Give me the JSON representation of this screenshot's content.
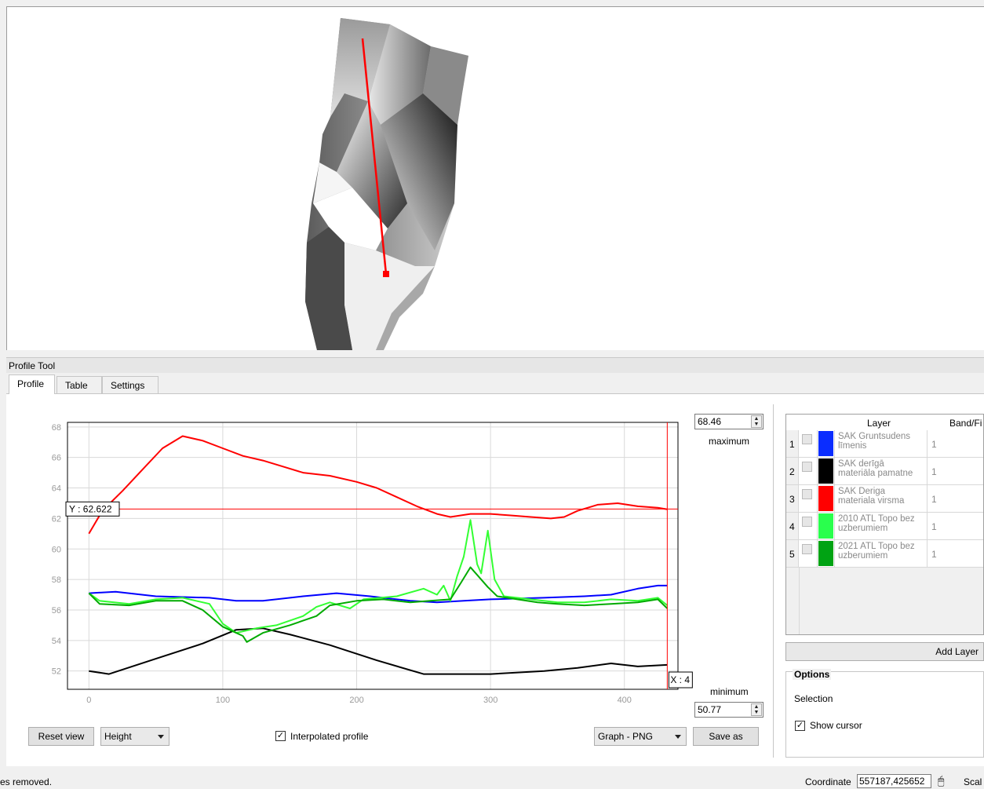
{
  "panel": {
    "title": "Profile Tool"
  },
  "tabs": [
    {
      "label": "Profile"
    },
    {
      "label": "Table"
    },
    {
      "label": "Settings"
    }
  ],
  "controls": {
    "maximum_value": "68.46",
    "maximum_label": "maximum",
    "minimum_value": "50.77",
    "minimum_label": "minimum",
    "reset_view": "Reset view",
    "mode_select": "Height",
    "interpolated_label": "Interpolated profile",
    "interpolated_checked": true,
    "export_select": "Graph - PNG",
    "save_as": "Save as"
  },
  "chart_data": {
    "type": "line",
    "xlim": [
      -16,
      440
    ],
    "ylim": [
      50.8,
      68.3
    ],
    "x_ticks": [
      0,
      100,
      200,
      300,
      400
    ],
    "y_ticks": [
      52,
      54,
      56,
      58,
      60,
      62,
      64,
      66,
      68
    ],
    "grid": true,
    "cursor": {
      "y_label": "Y : 62.622",
      "y_value": 62.622,
      "x_label": "X : 4",
      "x_value": 432
    },
    "series": [
      {
        "color": "#ff0000",
        "points": [
          [
            0,
            61
          ],
          [
            10,
            62.5
          ],
          [
            25,
            63.8
          ],
          [
            40,
            65.2
          ],
          [
            55,
            66.6
          ],
          [
            70,
            67.4
          ],
          [
            85,
            67.1
          ],
          [
            100,
            66.6
          ],
          [
            115,
            66.1
          ],
          [
            130,
            65.8
          ],
          [
            145,
            65.4
          ],
          [
            160,
            65.0
          ],
          [
            180,
            64.8
          ],
          [
            200,
            64.4
          ],
          [
            215,
            64.0
          ],
          [
            230,
            63.4
          ],
          [
            245,
            62.8
          ],
          [
            260,
            62.3
          ],
          [
            270,
            62.1
          ],
          [
            285,
            62.3
          ],
          [
            300,
            62.3
          ],
          [
            315,
            62.2
          ],
          [
            330,
            62.1
          ],
          [
            345,
            62.0
          ],
          [
            355,
            62.1
          ],
          [
            365,
            62.5
          ],
          [
            380,
            62.9
          ],
          [
            395,
            63.0
          ],
          [
            410,
            62.8
          ],
          [
            425,
            62.7
          ],
          [
            432,
            62.6
          ]
        ]
      },
      {
        "color": "#0000ff",
        "points": [
          [
            0,
            57.1
          ],
          [
            20,
            57.2
          ],
          [
            50,
            56.9
          ],
          [
            90,
            56.8
          ],
          [
            110,
            56.6
          ],
          [
            130,
            56.6
          ],
          [
            160,
            56.9
          ],
          [
            185,
            57.1
          ],
          [
            210,
            56.9
          ],
          [
            240,
            56.6
          ],
          [
            260,
            56.5
          ],
          [
            280,
            56.6
          ],
          [
            300,
            56.7
          ],
          [
            340,
            56.8
          ],
          [
            370,
            56.9
          ],
          [
            390,
            57.0
          ],
          [
            410,
            57.4
          ],
          [
            425,
            57.6
          ],
          [
            432,
            57.6
          ]
        ]
      },
      {
        "color": "#000000",
        "points": [
          [
            0,
            52.0
          ],
          [
            15,
            51.8
          ],
          [
            50,
            52.8
          ],
          [
            85,
            53.8
          ],
          [
            110,
            54.7
          ],
          [
            130,
            54.8
          ],
          [
            150,
            54.4
          ],
          [
            180,
            53.7
          ],
          [
            215,
            52.7
          ],
          [
            250,
            51.8
          ],
          [
            300,
            51.8
          ],
          [
            340,
            52.0
          ],
          [
            365,
            52.2
          ],
          [
            390,
            52.5
          ],
          [
            410,
            52.3
          ],
          [
            432,
            52.4
          ]
        ]
      },
      {
        "color": "#33ff33",
        "points": [
          [
            0,
            57.1
          ],
          [
            8,
            56.6
          ],
          [
            30,
            56.4
          ],
          [
            50,
            56.7
          ],
          [
            70,
            56.8
          ],
          [
            90,
            56.4
          ],
          [
            100,
            55.1
          ],
          [
            110,
            54.5
          ],
          [
            125,
            54.8
          ],
          [
            140,
            55.0
          ],
          [
            160,
            55.6
          ],
          [
            170,
            56.2
          ],
          [
            180,
            56.5
          ],
          [
            195,
            56.1
          ],
          [
            205,
            56.7
          ],
          [
            230,
            56.9
          ],
          [
            250,
            57.4
          ],
          [
            260,
            57.0
          ],
          [
            265,
            57.6
          ],
          [
            270,
            56.6
          ],
          [
            275,
            58.2
          ],
          [
            280,
            59.5
          ],
          [
            285,
            61.9
          ],
          [
            290,
            59.0
          ],
          [
            293,
            58.4
          ],
          [
            298,
            61.2
          ],
          [
            303,
            58.0
          ],
          [
            310,
            56.9
          ],
          [
            330,
            56.7
          ],
          [
            350,
            56.5
          ],
          [
            370,
            56.5
          ],
          [
            390,
            56.7
          ],
          [
            410,
            56.6
          ],
          [
            425,
            56.8
          ],
          [
            432,
            56.3
          ]
        ]
      },
      {
        "color": "#00aa00",
        "points": [
          [
            0,
            57.1
          ],
          [
            8,
            56.4
          ],
          [
            30,
            56.3
          ],
          [
            50,
            56.6
          ],
          [
            70,
            56.6
          ],
          [
            85,
            56.0
          ],
          [
            100,
            54.9
          ],
          [
            115,
            54.3
          ],
          [
            118,
            53.9
          ],
          [
            130,
            54.5
          ],
          [
            150,
            55.0
          ],
          [
            170,
            55.6
          ],
          [
            180,
            56.3
          ],
          [
            200,
            56.6
          ],
          [
            220,
            56.7
          ],
          [
            240,
            56.5
          ],
          [
            255,
            56.6
          ],
          [
            270,
            56.7
          ],
          [
            278,
            57.8
          ],
          [
            285,
            58.8
          ],
          [
            290,
            58.3
          ],
          [
            298,
            57.5
          ],
          [
            305,
            56.9
          ],
          [
            320,
            56.7
          ],
          [
            335,
            56.5
          ],
          [
            350,
            56.4
          ],
          [
            370,
            56.3
          ],
          [
            390,
            56.4
          ],
          [
            410,
            56.5
          ],
          [
            425,
            56.7
          ],
          [
            432,
            56.1
          ]
        ]
      }
    ]
  },
  "layers_table": {
    "headers": {
      "layer": "Layer",
      "band": "Band/Fi"
    },
    "rows": [
      {
        "num": "1",
        "color": "#0a2dff",
        "name": "SAK Gruntsudens līmenis",
        "band": "1"
      },
      {
        "num": "2",
        "color": "#000000",
        "name": "SAK derīgā materiāla pamatne",
        "band": "1"
      },
      {
        "num": "3",
        "color": "#ff0000",
        "name": "SAK Deriga materiala virsma",
        "band": "1"
      },
      {
        "num": "4",
        "color": "#29ff4d",
        "name": "2010 ATL Topo bez uzberumiem",
        "band": "1"
      },
      {
        "num": "5",
        "color": "#00a313",
        "name": "2021 ATL Topo bez uzberumiem",
        "band": "1"
      }
    ],
    "add_layer": "Add Layer"
  },
  "options": {
    "title": "Options",
    "selection_label": "Selection",
    "show_cursor_label": "Show cursor",
    "show_cursor_checked": true
  },
  "status": {
    "message": "es removed.",
    "coordinate_label": "Coordinate",
    "coordinate_value": "557187,425652",
    "scale_label": "Scal"
  }
}
